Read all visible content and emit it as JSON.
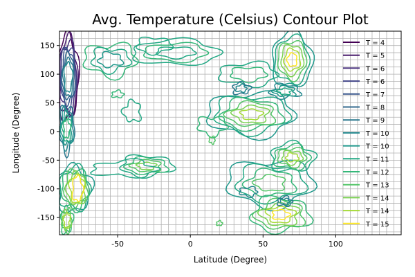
{
  "chart_data": {
    "type": "contour",
    "title": "Avg. Temperature (Celsius) Contour Plot",
    "xlabel": "Latitude (Degree)",
    "ylabel": "Longitude (Degree)",
    "xlim": [
      -90,
      145
    ],
    "ylim": [
      -180,
      175
    ],
    "xticks": [
      -50,
      0,
      50,
      100
    ],
    "yticks": [
      -150,
      -100,
      -50,
      0,
      50,
      100,
      150
    ],
    "grid": true,
    "legend_position": "top-right",
    "levels": [
      {
        "label": "T = 4",
        "color": "#440154"
      },
      {
        "label": "T = 5",
        "color": "#481a6c"
      },
      {
        "label": "T = 6",
        "color": "#472f7d"
      },
      {
        "label": "T = 6",
        "color": "#414487"
      },
      {
        "label": "T = 7",
        "color": "#39568c"
      },
      {
        "label": "T = 8",
        "color": "#31688e"
      },
      {
        "label": "T = 9",
        "color": "#2a788e"
      },
      {
        "label": "T = 10",
        "color": "#23888e"
      },
      {
        "label": "T = 10",
        "color": "#1f988b"
      },
      {
        "label": "T = 11",
        "color": "#22a884"
      },
      {
        "label": "T = 12",
        "color": "#35b779"
      },
      {
        "label": "T = 13",
        "color": "#54c568"
      },
      {
        "label": "T = 14",
        "color": "#7ad151"
      },
      {
        "label": "T = 14",
        "color": "#a5db36"
      },
      {
        "label": "T = 15",
        "color": "#fde725"
      }
    ]
  }
}
